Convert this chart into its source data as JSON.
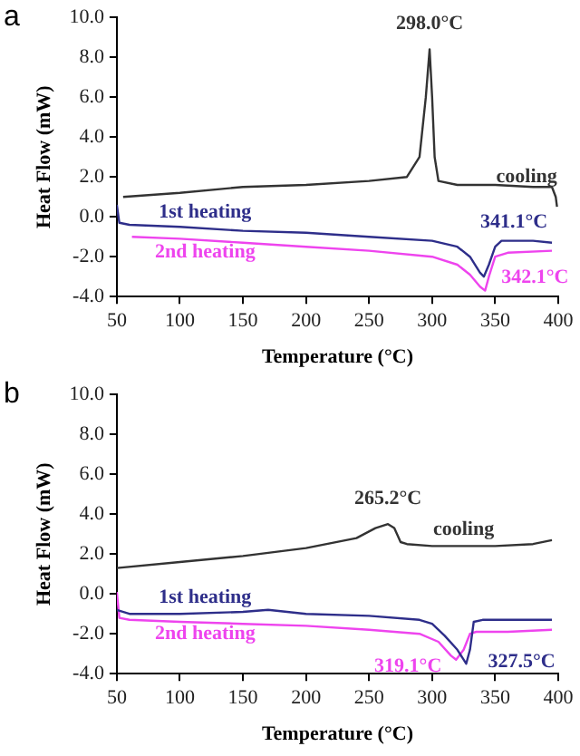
{
  "chart_data": [
    {
      "type": "line",
      "xlabel": "Temperature (°C)",
      "ylabel": "Heat Flow (mW)",
      "marker": "none",
      "legend": false,
      "xlim": [
        50,
        400
      ],
      "xticks": [
        50,
        100,
        150,
        200,
        250,
        300,
        350,
        400
      ],
      "ylim": [
        -4,
        10
      ],
      "yticks": [
        {
          "value": -4,
          "label": "-4.0"
        },
        {
          "value": -2,
          "label": "-2.0"
        },
        {
          "value": 0,
          "label": "0.0"
        },
        {
          "value": 2,
          "label": "2.0"
        },
        {
          "value": 4,
          "label": "4.0"
        },
        {
          "value": 6,
          "label": "6.0"
        },
        {
          "value": 8,
          "label": "8.0"
        },
        {
          "value": 10,
          "label": "10.0"
        }
      ],
      "series": [
        {
          "name": "cooling",
          "color": "#333333",
          "x": [
            55,
            100,
            150,
            200,
            250,
            280,
            290,
            295,
            298,
            300,
            302,
            305,
            320,
            350,
            380,
            395,
            398,
            399
          ],
          "values": [
            1.0,
            1.2,
            1.5,
            1.6,
            1.8,
            2.0,
            3.0,
            6.0,
            8.4,
            6.0,
            3.0,
            1.8,
            1.6,
            1.6,
            1.5,
            1.5,
            1.0,
            0.5
          ]
        },
        {
          "name": "1st heating",
          "color": "#2e2e8a",
          "x": [
            50,
            52,
            60,
            100,
            150,
            200,
            250,
            300,
            320,
            330,
            338,
            341,
            345,
            350,
            355,
            380,
            395
          ],
          "values": [
            0.6,
            -0.3,
            -0.4,
            -0.5,
            -0.7,
            -0.8,
            -1.0,
            -1.2,
            -1.5,
            -2.0,
            -2.8,
            -3.0,
            -2.4,
            -1.5,
            -1.2,
            -1.2,
            -1.3
          ]
        },
        {
          "name": "2nd heating",
          "color": "#ee44ee",
          "x": [
            62,
            100,
            150,
            200,
            250,
            300,
            320,
            330,
            338,
            342,
            345,
            350,
            360,
            395
          ],
          "values": [
            -1.0,
            -1.1,
            -1.3,
            -1.5,
            -1.7,
            -2.0,
            -2.4,
            -2.9,
            -3.5,
            -3.7,
            -3.0,
            -2.0,
            -1.8,
            -1.7
          ]
        }
      ],
      "annotations": [
        "a",
        {
          "text": "298.0°C",
          "x": 298,
          "y": 8.4
        },
        {
          "text": "341.1°C",
          "x": 341,
          "y": -3.0
        },
        {
          "text": "342.1°C",
          "x": 342,
          "y": -3.7
        }
      ]
    },
    {
      "type": "line",
      "xlabel": "Temperature (°C)",
      "ylabel": "Heat Flow (mW)",
      "marker": "none",
      "legend": false,
      "xlim": [
        50,
        400
      ],
      "xticks": [
        50,
        100,
        150,
        200,
        250,
        300,
        350,
        400
      ],
      "ylim": [
        -4,
        10
      ],
      "yticks": [
        {
          "value": -4,
          "label": "-4.0"
        },
        {
          "value": -2,
          "label": "-2.0"
        },
        {
          "value": 0,
          "label": "0.0"
        },
        {
          "value": 2,
          "label": "2.0"
        },
        {
          "value": 4,
          "label": "4.0"
        },
        {
          "value": 6,
          "label": "6.0"
        },
        {
          "value": 8,
          "label": "8.0"
        },
        {
          "value": 10,
          "label": "10.0"
        }
      ],
      "series": [
        {
          "name": "cooling",
          "color": "#333333",
          "x": [
            50,
            100,
            150,
            200,
            240,
            255,
            265,
            270,
            275,
            280,
            300,
            350,
            380,
            395
          ],
          "values": [
            1.3,
            1.6,
            1.9,
            2.3,
            2.8,
            3.3,
            3.5,
            3.3,
            2.6,
            2.5,
            2.4,
            2.4,
            2.5,
            2.7
          ]
        },
        {
          "name": "1st heating",
          "color": "#2e2e8a",
          "x": [
            50,
            60,
            100,
            150,
            170,
            200,
            250,
            290,
            300,
            310,
            320,
            327,
            330,
            333,
            340,
            395
          ],
          "values": [
            -0.8,
            -1.0,
            -1.0,
            -0.9,
            -0.8,
            -1.0,
            -1.1,
            -1.3,
            -1.5,
            -2.1,
            -2.8,
            -3.5,
            -2.8,
            -1.4,
            -1.3,
            -1.3
          ]
        },
        {
          "name": "2nd heating",
          "color": "#ee44ee",
          "x": [
            50,
            52,
            60,
            100,
            150,
            200,
            250,
            290,
            305,
            315,
            319,
            325,
            330,
            335,
            360,
            395
          ],
          "values": [
            0.1,
            -1.2,
            -1.3,
            -1.4,
            -1.5,
            -1.6,
            -1.8,
            -2.0,
            -2.4,
            -3.1,
            -3.3,
            -2.8,
            -2.0,
            -1.9,
            -1.9,
            -1.8
          ]
        }
      ],
      "annotations": [
        "b",
        {
          "text": "265.2°C",
          "x": 265,
          "y": 3.5
        },
        {
          "text": "319.1°C",
          "x": 319,
          "y": -3.3
        },
        {
          "text": "327.5°C",
          "x": 327,
          "y": -3.5
        }
      ]
    }
  ]
}
